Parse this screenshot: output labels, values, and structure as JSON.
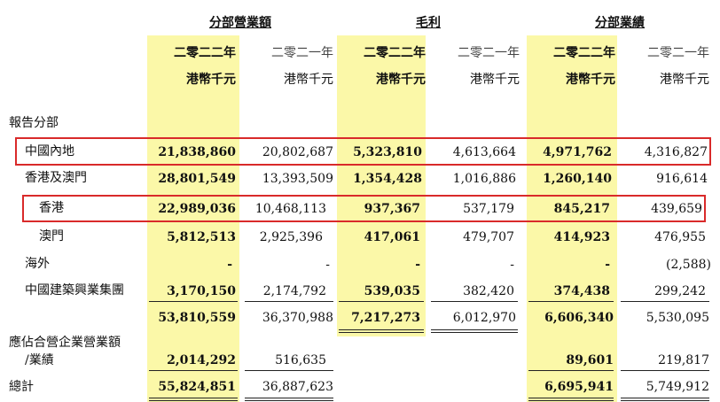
{
  "groups": {
    "revenue": "分部營業額",
    "gross_profit": "毛利",
    "results": "分部業績"
  },
  "years": {
    "y2022": "二零二二年",
    "y2021": "二零二一年"
  },
  "unit": "港幣千元",
  "section_label": "報告分部",
  "rows": [
    {
      "label": "中國內地",
      "values": [
        "21,838,860",
        "20,802,687",
        "5,323,810",
        "4,613,664",
        "4,971,762",
        "4,316,827"
      ]
    },
    {
      "label": "香港及澳門",
      "values": [
        "28,801,549",
        "13,393,509",
        "1,354,428",
        "1,016,886",
        "1,260,140",
        "916,614"
      ]
    },
    {
      "label": "香港",
      "values": [
        "22,989,036",
        "10,468,113",
        "937,367",
        "537,179",
        "845,217",
        "439,659"
      ]
    },
    {
      "label": "澳門",
      "values": [
        "5,812,513",
        "2,925,396",
        "417,061",
        "479,707",
        "414,923",
        "476,955"
      ]
    },
    {
      "label": "海外",
      "values": [
        "-",
        "-",
        "-",
        "-",
        "-",
        "(2,588)"
      ]
    },
    {
      "label": "中國建築興業集團",
      "values": [
        "3,170,150",
        "2,174,792",
        "539,035",
        "382,420",
        "374,438",
        "299,242"
      ]
    }
  ],
  "subtotal": {
    "values": [
      "53,810,559",
      "36,370,988",
      "7,217,273",
      "6,012,970",
      "6,606,340",
      "5,530,095"
    ]
  },
  "jv": {
    "label_line1": "應佔合營企業營業額",
    "label_line2": "/業績",
    "values": [
      "2,014,292",
      "516,635",
      "89,601",
      "219,817"
    ]
  },
  "total": {
    "label": "總計",
    "values": [
      "55,824,851",
      "36,887,623",
      "6,695,941",
      "5,749,912"
    ]
  }
}
